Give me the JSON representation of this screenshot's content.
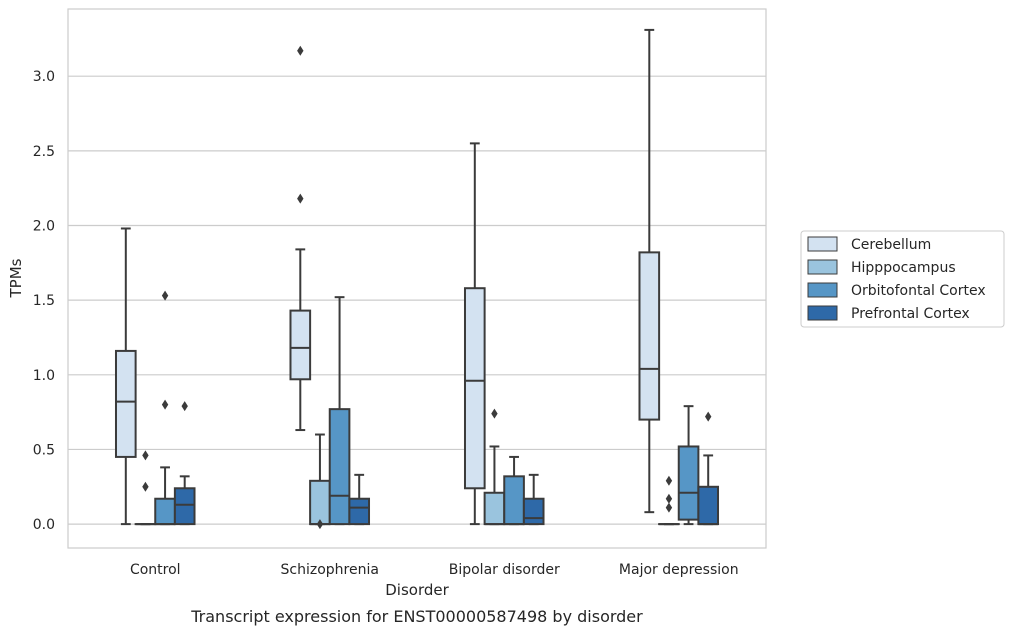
{
  "caption": "Transcript expression for ENST00000587498 by disorder",
  "chart_data": {
    "type": "box",
    "xlabel": "Disorder",
    "ylabel": "TPMs",
    "ylim": [
      -0.16,
      3.45
    ],
    "yticks": [
      0.0,
      0.5,
      1.0,
      1.5,
      2.0,
      2.5,
      3.0
    ],
    "ytick_labels": [
      "0.0",
      "0.5",
      "1.0",
      "1.5",
      "2.0",
      "2.5",
      "3.0"
    ],
    "grid": "horizontal",
    "legend_position": "right",
    "categories": [
      "Control",
      "Schizophrenia",
      "Bipolar disorder",
      "Major depression"
    ],
    "series": [
      {
        "name": "Cerebellum",
        "color": "#d3e2f1",
        "boxes": [
          {
            "whislo": 0.0,
            "q1": 0.45,
            "med": 0.82,
            "q3": 1.16,
            "whishi": 1.98,
            "fliers": []
          },
          {
            "whislo": 0.63,
            "q1": 0.97,
            "med": 1.18,
            "q3": 1.43,
            "whishi": 1.84,
            "fliers": [
              2.18,
              3.17
            ]
          },
          {
            "whislo": 0.0,
            "q1": 0.24,
            "med": 0.96,
            "q3": 1.58,
            "whishi": 2.55,
            "fliers": []
          },
          {
            "whislo": 0.08,
            "q1": 0.7,
            "med": 1.04,
            "q3": 1.82,
            "whishi": 3.31,
            "fliers": []
          }
        ]
      },
      {
        "name": "Hipppocampus",
        "color": "#9ac4de",
        "boxes": [
          {
            "whislo": 0.0,
            "q1": 0.0,
            "med": 0.0,
            "q3": 0.0,
            "whishi": 0.0,
            "fliers": [
              0.25,
              0.46
            ]
          },
          {
            "whislo": 0.0,
            "q1": 0.0,
            "med": 0.0,
            "q3": 0.29,
            "whishi": 0.6,
            "fliers": [
              0.0
            ]
          },
          {
            "whislo": 0.0,
            "q1": 0.0,
            "med": 0.0,
            "q3": 0.21,
            "whishi": 0.52,
            "fliers": [
              0.74
            ]
          },
          {
            "whislo": 0.0,
            "q1": 0.0,
            "med": 0.0,
            "q3": 0.0,
            "whishi": 0.0,
            "fliers": [
              0.11,
              0.17,
              0.29
            ]
          }
        ]
      },
      {
        "name": "Orbitofontal Cortex",
        "color": "#5696c6",
        "boxes": [
          {
            "whislo": 0.0,
            "q1": 0.0,
            "med": 0.0,
            "q3": 0.17,
            "whishi": 0.38,
            "fliers": [
              0.8,
              1.53
            ]
          },
          {
            "whislo": 0.0,
            "q1": 0.0,
            "med": 0.19,
            "q3": 0.77,
            "whishi": 1.52,
            "fliers": []
          },
          {
            "whislo": 0.0,
            "q1": 0.0,
            "med": 0.0,
            "q3": 0.32,
            "whishi": 0.45,
            "fliers": []
          },
          {
            "whislo": 0.0,
            "q1": 0.03,
            "med": 0.21,
            "q3": 0.52,
            "whishi": 0.79,
            "fliers": []
          }
        ]
      },
      {
        "name": "Prefrontal Cortex",
        "color": "#2e69a8",
        "boxes": [
          {
            "whislo": 0.0,
            "q1": 0.0,
            "med": 0.13,
            "q3": 0.24,
            "whishi": 0.32,
            "fliers": [
              0.79
            ]
          },
          {
            "whislo": 0.0,
            "q1": 0.0,
            "med": 0.11,
            "q3": 0.17,
            "whishi": 0.33,
            "fliers": []
          },
          {
            "whislo": 0.0,
            "q1": 0.0,
            "med": 0.04,
            "q3": 0.17,
            "whishi": 0.33,
            "fliers": []
          },
          {
            "whislo": 0.0,
            "q1": 0.0,
            "med": 0.0,
            "q3": 0.25,
            "whishi": 0.46,
            "fliers": [
              0.72
            ]
          }
        ]
      }
    ]
  }
}
